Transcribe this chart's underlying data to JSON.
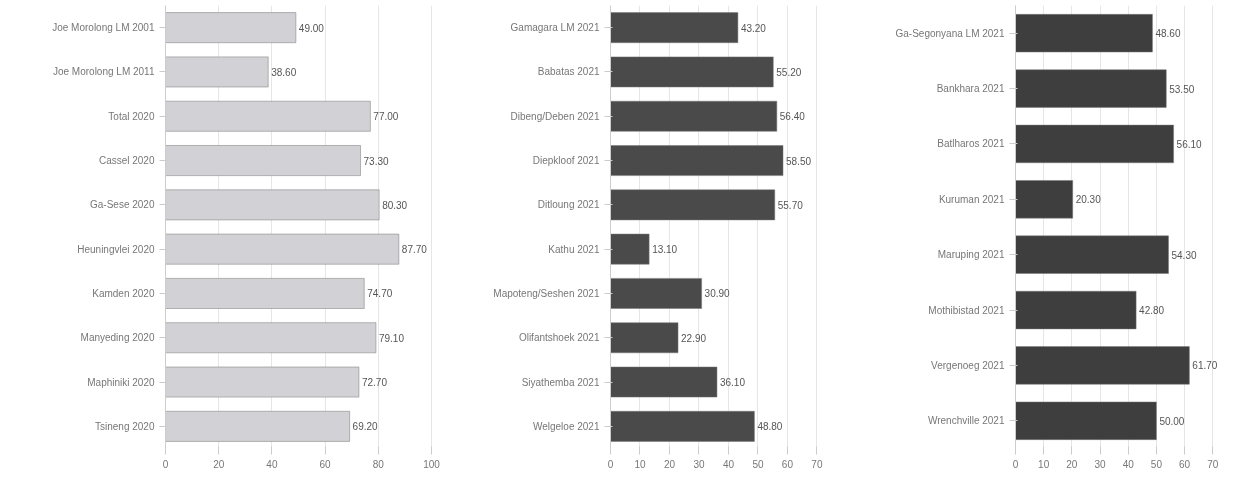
{
  "chart_data": [
    {
      "type": "bar",
      "orientation": "horizontal",
      "categories": [
        "Joe Morolong LM 2001",
        "Joe Morolong LM 2011",
        "Total 2020",
        "Cassel 2020",
        "Ga-Sese 2020",
        "Heuningvlei 2020",
        "Kamden 2020",
        "Manyeding 2020",
        "Maphiniki 2020",
        "Tsineng 2020"
      ],
      "values": [
        49.0,
        38.6,
        77.0,
        73.3,
        80.3,
        87.7,
        74.7,
        79.1,
        72.7,
        69.2
      ],
      "value_labels": [
        "49.00",
        "38.60",
        "77.00",
        "73.30",
        "80.30",
        "87.70",
        "74.70",
        "79.10",
        "72.70",
        "69.20"
      ],
      "color": "#d2d2d6",
      "xlim": [
        0,
        100
      ],
      "xticks": [
        0,
        20,
        40,
        60,
        80,
        100
      ],
      "grid": "x"
    },
    {
      "type": "bar",
      "orientation": "horizontal",
      "categories": [
        "Gamagara LM 2021",
        "Babatas 2021",
        "Dibeng/Deben 2021",
        "Diepkloof 2021",
        "Ditloung 2021",
        "Kathu 2021",
        "Mapoteng/Seshen 2021",
        "Olifantshoek 2021",
        "Siyathemba 2021",
        "Welgeloe 2021"
      ],
      "values": [
        43.2,
        55.2,
        56.4,
        58.5,
        55.7,
        13.1,
        30.9,
        22.9,
        36.1,
        48.8
      ],
      "value_labels": [
        "43.20",
        "55.20",
        "56.40",
        "58.50",
        "55.70",
        "13.10",
        "30.90",
        "22.90",
        "36.10",
        "48.80"
      ],
      "color": "#4a4a4a",
      "xlim": [
        0,
        70
      ],
      "xticks": [
        0,
        10,
        20,
        30,
        40,
        50,
        60,
        70
      ],
      "grid": "x"
    },
    {
      "type": "bar",
      "orientation": "horizontal",
      "categories": [
        "Ga-Segonyana LM 2021",
        "Bankhara 2021",
        "Batlharos 2021",
        "Kuruman 2021",
        "Maruping 2021",
        "Mothibistad 2021",
        "Vergenoeg 2021",
        "Wrenchville 2021"
      ],
      "values": [
        48.6,
        53.5,
        56.1,
        20.3,
        54.3,
        42.8,
        61.7,
        50.0
      ],
      "value_labels": [
        "48.60",
        "53.50",
        "56.10",
        "20.30",
        "54.30",
        "42.80",
        "61.70",
        "50.00"
      ],
      "color": "#3e3e3e",
      "xlim": [
        0,
        70
      ],
      "xticks": [
        0,
        10,
        20,
        30,
        40,
        50,
        60,
        70
      ],
      "grid": "x"
    }
  ]
}
